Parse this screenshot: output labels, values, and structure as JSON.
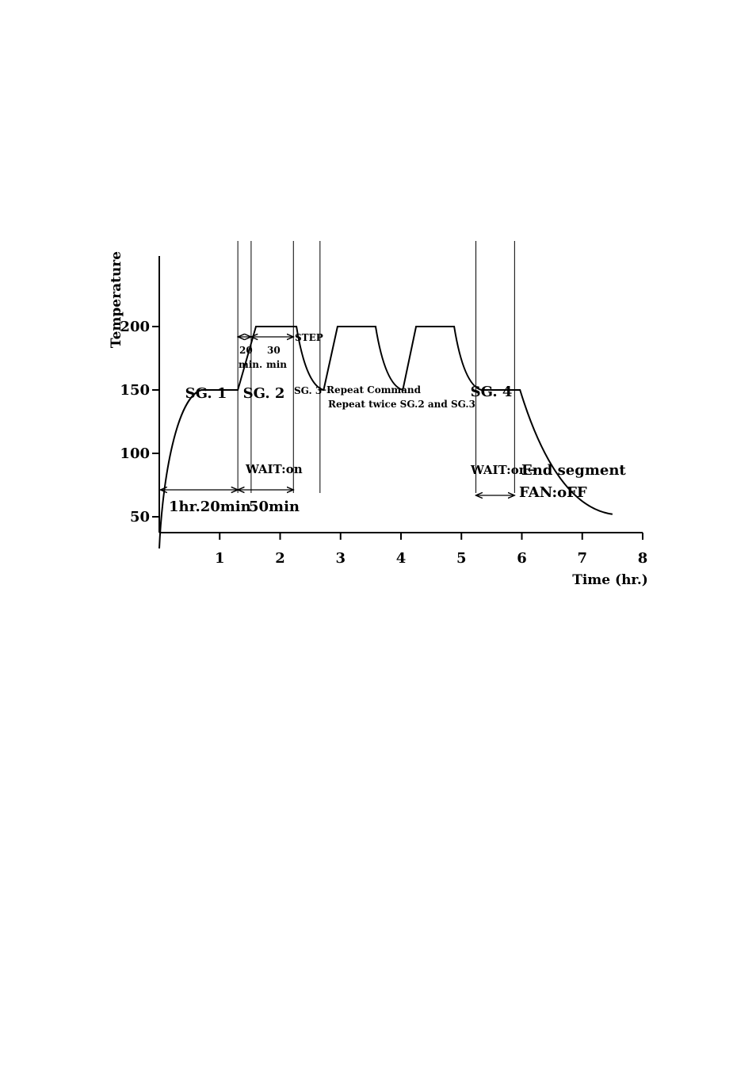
{
  "chart_data": {
    "type": "line",
    "title": "",
    "xlabel": "Time (hr.)",
    "ylabel": "Temperature",
    "xlim": [
      0,
      8
    ],
    "ylim": [
      0,
      200
    ],
    "x_ticks": [
      "1",
      "2",
      "3",
      "4",
      "5",
      "6",
      "7",
      "8"
    ],
    "y_ticks": [
      "50",
      "100",
      "150",
      "200"
    ],
    "grid": false,
    "legend": "none",
    "series": [
      {
        "values": [
          {
            "x": 0,
            "y": 25
          },
          {
            "x": 0.15,
            "y": 95
          },
          {
            "x": 0.4,
            "y": 135
          },
          {
            "x": 0.7,
            "y": 150
          },
          {
            "x": 1.3,
            "y": 150
          },
          {
            "x": 1.6,
            "y": 200
          },
          {
            "x": 2.27,
            "y": 200
          },
          {
            "x": 2.72,
            "y": 150
          },
          {
            "x": 2.95,
            "y": 200
          },
          {
            "x": 3.58,
            "y": 200
          },
          {
            "x": 4.03,
            "y": 150
          },
          {
            "x": 4.25,
            "y": 200
          },
          {
            "x": 4.88,
            "y": 200
          },
          {
            "x": 5.33,
            "y": 150
          },
          {
            "x": 5.97,
            "y": 150
          },
          {
            "x": 6.5,
            "y": 110
          },
          {
            "x": 7.0,
            "y": 78
          },
          {
            "x": 7.5,
            "y": 52
          }
        ]
      }
    ],
    "annotations": {
      "sg1": "SG. 1",
      "sg2": "SG. 2",
      "sg3": "SG. 3",
      "sg4": "SG. 4",
      "step": "STEP",
      "twenty": "20",
      "min_dot": "min.",
      "thirty": "30",
      "min": "min",
      "repeat_command": "←Repeat Command",
      "repeat_twice": "Repeat twice SG.2 and SG.3",
      "wait_on_1": "WAIT:on",
      "wait_on_2": "WAIT:on←",
      "end_segment": "End segment",
      "fan_off": "FAN:oFF",
      "span_1": "1hr.20min",
      "span_2": "50min"
    }
  }
}
